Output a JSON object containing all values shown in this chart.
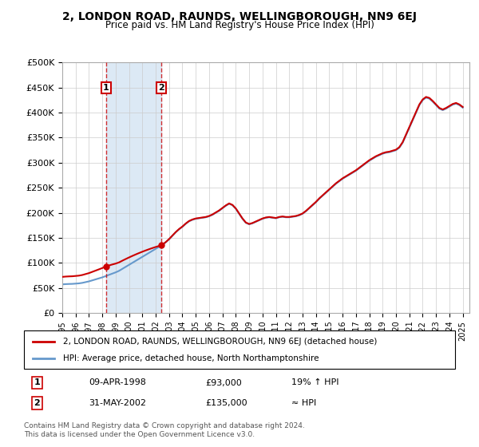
{
  "title": "2, LONDON ROAD, RAUNDS, WELLINGBOROUGH, NN9 6EJ",
  "subtitle": "Price paid vs. HM Land Registry's House Price Index (HPI)",
  "ylabel_ticks": [
    "£0",
    "£50K",
    "£100K",
    "£150K",
    "£200K",
    "£250K",
    "£300K",
    "£350K",
    "£400K",
    "£450K",
    "£500K"
  ],
  "ytick_values": [
    0,
    50000,
    100000,
    150000,
    200000,
    250000,
    300000,
    350000,
    400000,
    450000,
    500000
  ],
  "ylim": [
    0,
    500000
  ],
  "xlim_start": 1995.0,
  "xlim_end": 2025.5,
  "transaction1": {
    "date": "09-APR-1998",
    "year": 1998.27,
    "price": 93000,
    "label": "1"
  },
  "transaction2": {
    "date": "31-MAY-2002",
    "year": 2002.41,
    "price": 135000,
    "label": "2"
  },
  "legend_line1": "2, LONDON ROAD, RAUNDS, WELLINGBOROUGH, NN9 6EJ (detached house)",
  "legend_line2": "HPI: Average price, detached house, North Northamptonshire",
  "table_row1": [
    "1",
    "09-APR-1998",
    "£93,000",
    "19% ↑ HPI"
  ],
  "table_row2": [
    "2",
    "31-MAY-2002",
    "£135,000",
    "≈ HPI"
  ],
  "footnote": "Contains HM Land Registry data © Crown copyright and database right 2024.\nThis data is licensed under the Open Government Licence v3.0.",
  "red_color": "#cc0000",
  "blue_color": "#6699cc",
  "shade_color": "#dce9f5",
  "hpi_index": {
    "years": [
      1995.0,
      1995.25,
      1995.5,
      1995.75,
      1996.0,
      1996.25,
      1996.5,
      1996.75,
      1997.0,
      1997.25,
      1997.5,
      1997.75,
      1998.0,
      1998.25,
      1998.5,
      1998.75,
      1999.0,
      1999.25,
      1999.5,
      1999.75,
      2000.0,
      2000.25,
      2000.5,
      2000.75,
      2001.0,
      2001.25,
      2001.5,
      2001.75,
      2002.0,
      2002.25,
      2002.5,
      2002.75,
      2003.0,
      2003.25,
      2003.5,
      2003.75,
      2004.0,
      2004.25,
      2004.5,
      2004.75,
      2005.0,
      2005.25,
      2005.5,
      2005.75,
      2006.0,
      2006.25,
      2006.5,
      2006.75,
      2007.0,
      2007.25,
      2007.5,
      2007.75,
      2008.0,
      2008.25,
      2008.5,
      2008.75,
      2009.0,
      2009.25,
      2009.5,
      2009.75,
      2010.0,
      2010.25,
      2010.5,
      2010.75,
      2011.0,
      2011.25,
      2011.5,
      2011.75,
      2012.0,
      2012.25,
      2012.5,
      2012.75,
      2013.0,
      2013.25,
      2013.5,
      2013.75,
      2014.0,
      2014.25,
      2014.5,
      2014.75,
      2015.0,
      2015.25,
      2015.5,
      2015.75,
      2016.0,
      2016.25,
      2016.5,
      2016.75,
      2017.0,
      2017.25,
      2017.5,
      2017.75,
      2018.0,
      2018.25,
      2018.5,
      2018.75,
      2019.0,
      2019.25,
      2019.5,
      2019.75,
      2020.0,
      2020.25,
      2020.5,
      2020.75,
      2021.0,
      2021.25,
      2021.5,
      2021.75,
      2022.0,
      2022.25,
      2022.5,
      2022.75,
      2023.0,
      2023.25,
      2023.5,
      2023.75,
      2024.0,
      2024.25,
      2024.5,
      2024.75,
      2025.0
    ],
    "hpi_values": [
      57000,
      57500,
      57800,
      58000,
      58500,
      59000,
      60000,
      61500,
      63000,
      65000,
      67000,
      69000,
      71000,
      73500,
      76000,
      78500,
      81000,
      84000,
      88000,
      92000,
      96000,
      100000,
      104000,
      108000,
      112000,
      116000,
      120000,
      124000,
      128000,
      132000,
      136000,
      141000,
      147000,
      154000,
      161000,
      167000,
      172000,
      178000,
      183000,
      186000,
      188000,
      189000,
      190000,
      191000,
      193000,
      196000,
      200000,
      204000,
      209000,
      214000,
      218000,
      215000,
      208000,
      198000,
      188000,
      180000,
      177000,
      179000,
      182000,
      185000,
      188000,
      190000,
      191000,
      190000,
      189000,
      191000,
      192000,
      191000,
      191000,
      192000,
      193000,
      195000,
      198000,
      203000,
      209000,
      215000,
      221000,
      228000,
      234000,
      240000,
      246000,
      252000,
      258000,
      263000,
      268000,
      272000,
      276000,
      280000,
      284000,
      289000,
      294000,
      299000,
      304000,
      308000,
      312000,
      315000,
      318000,
      320000,
      321000,
      323000,
      325000,
      330000,
      340000,
      355000,
      370000,
      385000,
      400000,
      415000,
      425000,
      430000,
      428000,
      422000,
      415000,
      408000,
      405000,
      408000,
      412000,
      416000,
      418000,
      415000,
      410000
    ]
  }
}
